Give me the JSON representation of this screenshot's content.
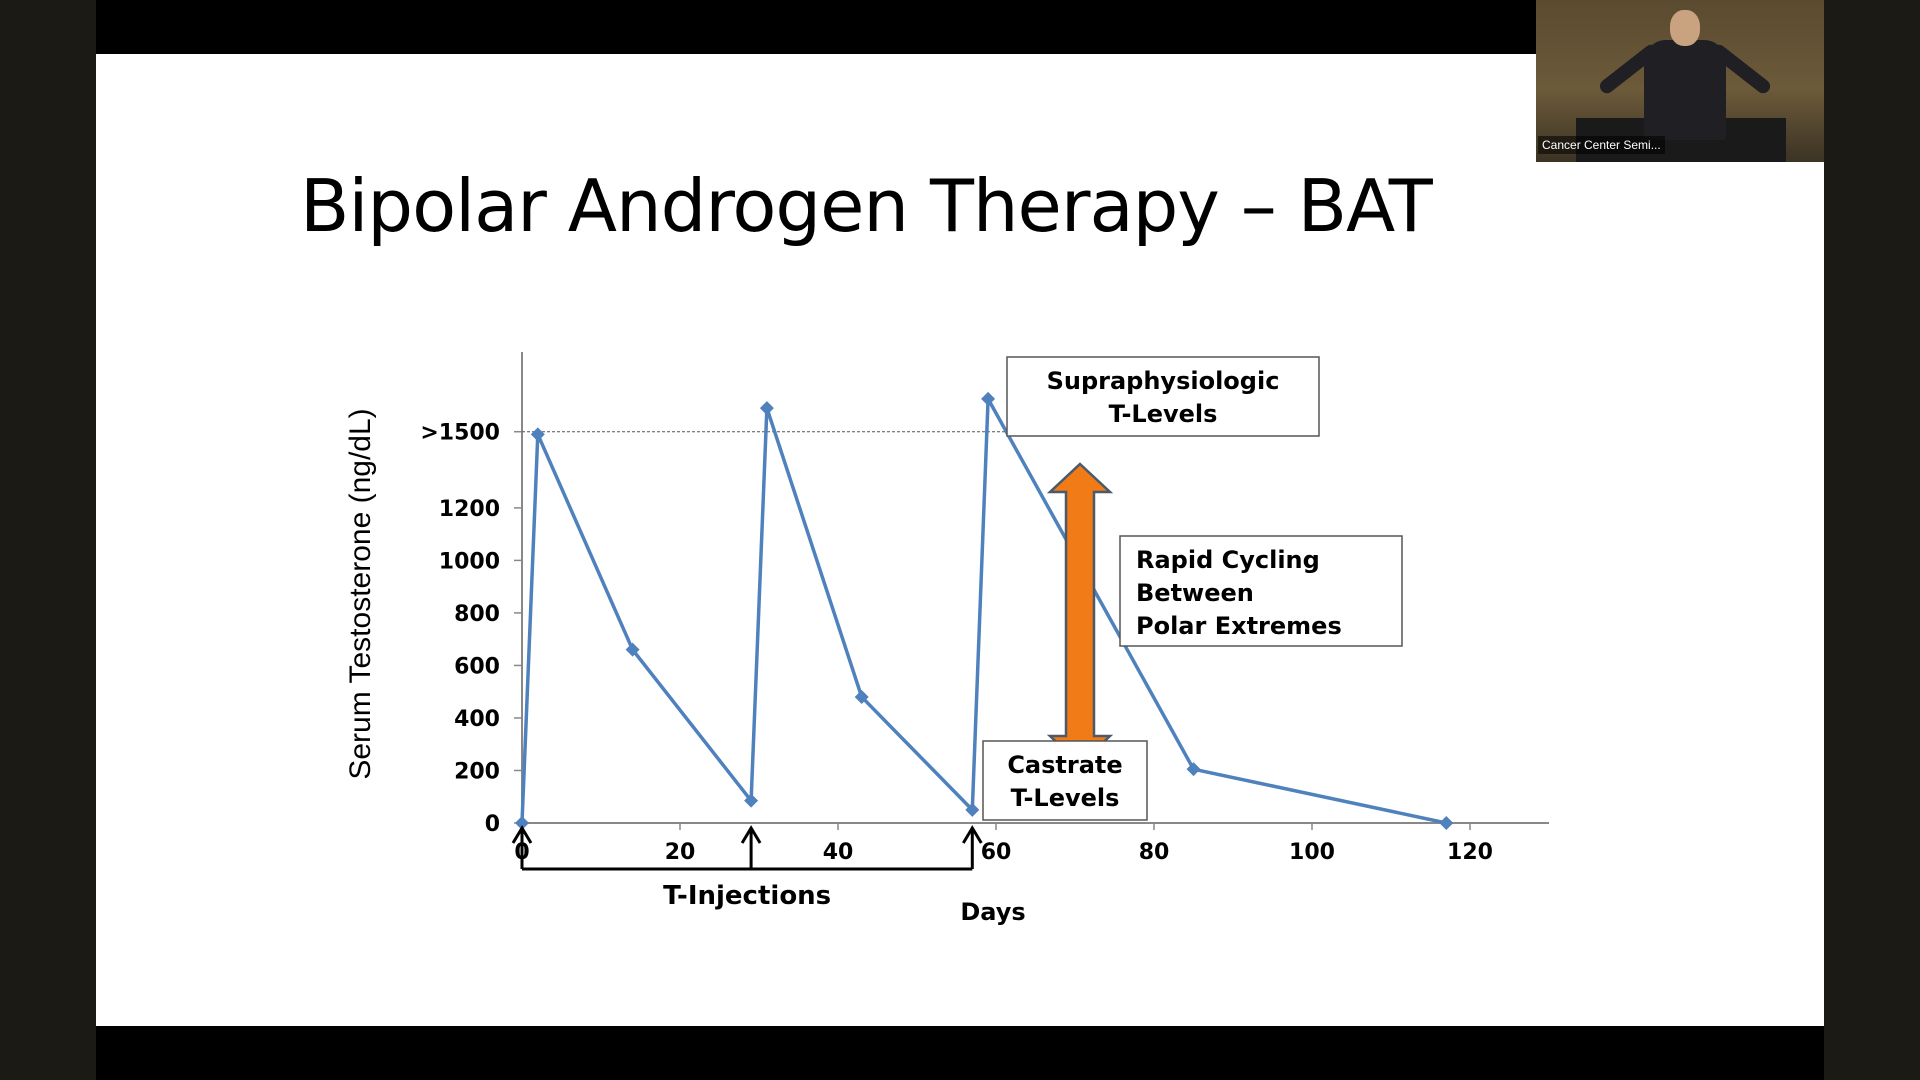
{
  "slide": {
    "title": "Bipolar Androgen Therapy – BAT"
  },
  "webcam": {
    "label": "Cancer Center Semi..."
  },
  "chart_data": {
    "type": "line",
    "title": "",
    "xlabel": "Days",
    "ylabel": "Serum Testosterone (ng/dL)",
    "xlim": [
      0,
      130
    ],
    "ylim": [
      0,
      1800
    ],
    "x_ticks": [
      "0",
      "20",
      "40",
      "60",
      "80",
      "100",
      "120"
    ],
    "y_ticks": [
      {
        "label": "0",
        "value": 0
      },
      {
        "label": "200",
        "value": 200
      },
      {
        "label": "400",
        "value": 400
      },
      {
        "label": "600",
        "value": 600
      },
      {
        "label": "800",
        "value": 800
      },
      {
        "label": "1000",
        "value": 1000
      },
      {
        "label": "1200",
        "value": 1200
      },
      {
        "label": ">1500",
        "value": 1490
      }
    ],
    "reference_line": {
      "y": 1490
    },
    "series": [
      {
        "color": "#4f81bd",
        "points": [
          {
            "x": 0,
            "y": 0
          },
          {
            "x": 2,
            "y": 1480
          },
          {
            "x": 14,
            "y": 660
          },
          {
            "x": 29,
            "y": 85
          },
          {
            "x": 31,
            "y": 1580
          },
          {
            "x": 43,
            "y": 480
          },
          {
            "x": 57,
            "y": 50
          },
          {
            "x": 59,
            "y": 1615
          },
          {
            "x": 85,
            "y": 205
          },
          {
            "x": 117,
            "y": 0
          }
        ]
      }
    ],
    "injections": {
      "label": "T-Injections",
      "days": [
        0,
        29,
        57
      ]
    },
    "annotations": {
      "supra": [
        "Supraphysiologic",
        "T-Levels"
      ],
      "rapid": [
        "Rapid Cycling",
        "Between",
        "Polar Extremes"
      ],
      "castrate": [
        "Castrate",
        "T-Levels"
      ]
    },
    "arrow_color": "#f07b17"
  }
}
